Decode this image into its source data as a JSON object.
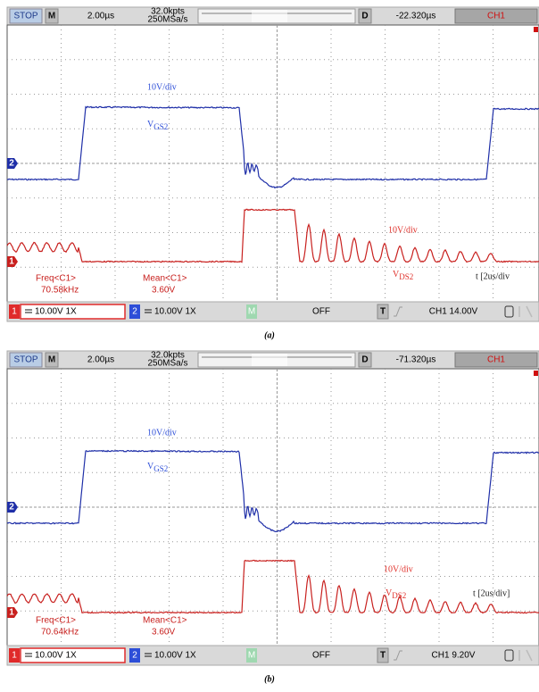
{
  "panels": [
    {
      "top_bar": {
        "run_state": "STOP",
        "mode": "M",
        "timebase": "2.00µs",
        "memory": "32.0kpts",
        "sample_rate": "250MSa/s",
        "delay_label": "D",
        "delay": "-22.320µs",
        "channel": "CH1"
      },
      "screen": {
        "gs_scale": "10V/div",
        "gs_label": {
          "main": "V",
          "sub": "GS2"
        },
        "ds_scale": "10V/div",
        "ds_label": {
          "main": "V",
          "sub": "DS2"
        },
        "time_scale": "t [2us/div",
        "ch2_marker": "2",
        "ch1_marker": "1",
        "freq_label": "Freq<C1>",
        "freq": "70.58kHz",
        "mean_label": "Mean<C1>",
        "mean": "3.60V"
      },
      "bottom_bar": {
        "ch1": "1",
        "ch1_setting": "10.00V 1X",
        "ch2": "2",
        "ch2_setting": "10.00V 1X",
        "math": "M",
        "math_state": "OFF",
        "trigger": "T",
        "trigger_level": "CH1 14.00V"
      },
      "caption": "(a)"
    },
    {
      "top_bar": {
        "run_state": "STOP",
        "mode": "M",
        "timebase": "2.00µs",
        "memory": "32.0kpts",
        "sample_rate": "250MSa/s",
        "delay_label": "D",
        "delay": "-71.320µs",
        "channel": "CH1"
      },
      "screen": {
        "gs_scale": "10V/div",
        "gs_label": {
          "main": "V",
          "sub": "GS2"
        },
        "ds_scale": "10V/div",
        "ds_label": {
          "main": "V",
          "sub": "DS2"
        },
        "time_scale": "t [2us/div]",
        "ch2_marker": "2",
        "ch1_marker": "1",
        "freq_label": "Freq<C1>",
        "freq": "70.64kHz",
        "mean_label": "Mean<C1>",
        "mean": "3.60V"
      },
      "bottom_bar": {
        "ch1": "1",
        "ch1_setting": "10.00V 1X",
        "ch2": "2",
        "ch2_setting": "10.00V 1X",
        "math": "M",
        "math_state": "OFF",
        "trigger": "T",
        "trigger_level": "CH1 9.20V"
      },
      "caption": "(b)"
    }
  ]
}
